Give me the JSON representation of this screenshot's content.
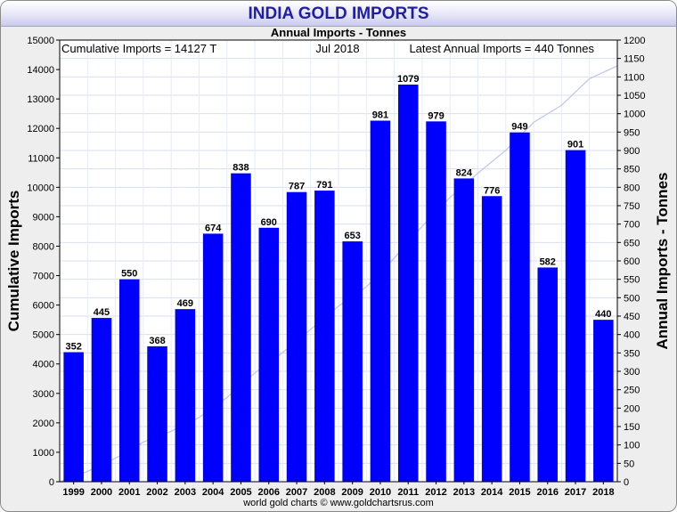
{
  "chart_data": {
    "type": "bar+line",
    "title": "INDIA GOLD IMPORTS",
    "subtitle": "Annual Imports - Tonnes",
    "annotations": {
      "left": "Cumulative Imports = 14127 T",
      "center": "Jul 2018",
      "right": "Latest Annual Imports = 440 Tonnes"
    },
    "ylabel_left": "Cumulative Imports",
    "ylabel_right": "Annual Imports - Tonnes",
    "y_left_range": [
      0,
      15000
    ],
    "y_left_ticks": [
      0,
      1000,
      2000,
      3000,
      4000,
      5000,
      6000,
      7000,
      8000,
      9000,
      10000,
      11000,
      12000,
      13000,
      14000,
      15000
    ],
    "y_right_range": [
      0,
      1200
    ],
    "y_right_ticks": [
      0,
      50,
      100,
      150,
      200,
      250,
      300,
      350,
      400,
      450,
      500,
      550,
      600,
      650,
      700,
      750,
      800,
      850,
      900,
      950,
      1000,
      1050,
      1100,
      1150,
      1200
    ],
    "grid": true,
    "categories": [
      "1999",
      "2000",
      "2001",
      "2002",
      "2003",
      "2004",
      "2005",
      "2006",
      "2007",
      "2008",
      "2009",
      "2010",
      "2011",
      "2012",
      "2013",
      "2014",
      "2015",
      "2016",
      "2017",
      "2018"
    ],
    "series": [
      {
        "type": "bar",
        "axis": "right",
        "color": "#0000ff",
        "values": [
          352,
          445,
          550,
          368,
          469,
          674,
          838,
          690,
          787,
          791,
          653,
          981,
          1079,
          979,
          824,
          776,
          949,
          582,
          901,
          440
        ]
      },
      {
        "type": "line",
        "axis": "left",
        "color": "#c0c4ec",
        "values": [
          352,
          797,
          1347,
          1715,
          2184,
          2858,
          3696,
          4386,
          5173,
          5964,
          6617,
          7598,
          8677,
          9656,
          10480,
          11256,
          12205,
          12787,
          13688,
          14127
        ]
      }
    ],
    "footer": "world gold charts © www.goldchartsrus.com"
  }
}
